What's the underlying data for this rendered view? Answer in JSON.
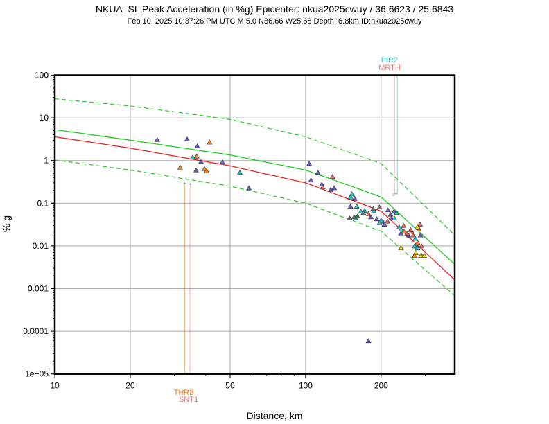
{
  "title": "NKUA–SL Peak Acceleration (in %g) Epicenter: nkua2025cwuy / 36.6623 / 25.6843",
  "subtitle": "Feb 10, 2025 10:37:26 PM UTC   M 5.0   N36.66 W25.68   Depth: 6.8km   ID:nkua2025cwuy",
  "chart_data": {
    "type": "scatter",
    "title": "NKUA–SL Peak Acceleration (in %g) Epicenter: nkua2025cwuy / 36.6623 / 25.6843",
    "xlabel": "Distance, km",
    "ylabel": "% g",
    "xscale": "log",
    "yscale": "log",
    "xlim": [
      10,
      393
    ],
    "ylim": [
      1e-05,
      100
    ],
    "grid": true,
    "x_ticks": [
      {
        "value": 10,
        "label": "10"
      },
      {
        "value": 20,
        "label": "20"
      },
      {
        "value": 50,
        "label": "50"
      },
      {
        "value": 100,
        "label": "100"
      },
      {
        "value": 200,
        "label": "200"
      }
    ],
    "y_ticks": [
      {
        "value": 100,
        "label": "100"
      },
      {
        "value": 10,
        "label": "10"
      },
      {
        "value": 1,
        "label": "1"
      },
      {
        "value": 0.1,
        "label": "0.1"
      },
      {
        "value": 0.01,
        "label": "0.01"
      },
      {
        "value": 0.001,
        "label": "0.001"
      },
      {
        "value": 0.0001,
        "label": "0.0001"
      },
      {
        "value": 1e-05,
        "label": "1e−05"
      }
    ],
    "curves": [
      {
        "name": "gmpe-upper",
        "color": "#33cc33",
        "style": "dashed",
        "x": [
          10,
          20,
          50,
          100,
          200,
          393
        ],
        "y": [
          28,
          19,
          9.2,
          3.6,
          0.85,
          0.018
        ]
      },
      {
        "name": "gmpe-median-green",
        "color": "#22cc22",
        "style": "solid",
        "x": [
          10,
          20,
          50,
          100,
          200,
          393
        ],
        "y": [
          5.3,
          3.0,
          1.35,
          0.6,
          0.14,
          0.0037
        ]
      },
      {
        "name": "gmpe-median-red",
        "color": "#ee2222",
        "style": "solid",
        "x": [
          10,
          20,
          50,
          100,
          200,
          393
        ],
        "y": [
          3.6,
          1.95,
          0.75,
          0.3,
          0.065,
          0.0016
        ]
      },
      {
        "name": "gmpe-lower",
        "color": "#33cc33",
        "style": "dashed",
        "x": [
          10,
          20,
          50,
          100,
          200,
          393
        ],
        "y": [
          1.03,
          0.6,
          0.25,
          0.1,
          0.022,
          0.00068
        ]
      }
    ],
    "series": [
      {
        "name": "blue",
        "color": "#6a5acd",
        "points": [
          [
            25.6,
            3.1
          ],
          [
            33.7,
            3.2
          ],
          [
            37.0,
            2.2
          ],
          [
            38.3,
            0.95
          ],
          [
            36.6,
            0.6
          ],
          [
            46.6,
            0.93
          ],
          [
            59.4,
            0.23
          ],
          [
            103.4,
            0.85
          ],
          [
            112,
            0.53
          ],
          [
            105,
            0.35
          ],
          [
            116,
            0.28
          ],
          [
            126,
            0.21
          ],
          [
            130,
            0.23
          ],
          [
            157,
            0.13
          ],
          [
            151,
            0.085
          ],
          [
            178,
            6e-05
          ],
          [
            192,
            0.043
          ],
          [
            182,
            0.048
          ],
          [
            213,
            0.07
          ],
          [
            218,
            0.055
          ],
          [
            225,
            0.065
          ],
          [
            220,
            0.045
          ],
          [
            206,
            0.032
          ],
          [
            203,
            0.038
          ],
          [
            240,
            0.02
          ],
          [
            256,
            0.018
          ],
          [
            287,
            0.018
          ],
          [
            278,
            0.01
          ]
        ]
      },
      {
        "name": "orange",
        "color": "#ff8c1a",
        "points": [
          [
            41.4,
            2.7
          ],
          [
            36.8,
            1.27
          ],
          [
            31.6,
            0.7
          ],
          [
            39.5,
            0.65
          ],
          [
            40.3,
            0.58
          ],
          [
            247,
            0.022
          ],
          [
            265,
            0.022
          ],
          [
            280,
            0.012
          ],
          [
            283,
            0.025
          ],
          [
            290,
            0.006
          ],
          [
            272,
            0.006
          ]
        ]
      },
      {
        "name": "cyan",
        "color": "#1fc9c9",
        "points": [
          [
            35.5,
            1.2
          ],
          [
            54.7,
            0.53
          ],
          [
            153,
            0.165
          ],
          [
            151,
            0.14
          ],
          [
            160,
            0.085
          ],
          [
            172,
            0.068
          ],
          [
            166,
            0.065
          ],
          [
            158,
            0.045
          ],
          [
            187,
            0.067
          ],
          [
            197,
            0.035
          ],
          [
            200,
            0.04
          ],
          [
            226,
            0.045
          ],
          [
            230,
            0.06
          ],
          [
            240,
            0.025
          ],
          [
            236,
            0.028
          ],
          [
            274,
            0.015
          ],
          [
            272,
            0.01
          ],
          [
            279,
            0.009
          ]
        ]
      },
      {
        "name": "red",
        "color": "#e8686a",
        "points": [
          [
            128,
            0.42
          ],
          [
            117,
            0.24
          ],
          [
            178,
            0.057
          ],
          [
            212,
            0.038
          ],
          [
            246,
            0.03
          ],
          [
            254,
            0.02
          ],
          [
            262,
            0.024
          ],
          [
            268,
            0.018
          ],
          [
            281,
            0.027
          ],
          [
            286,
            0.032
          ],
          [
            290,
            0.01
          ]
        ]
      },
      {
        "name": "gray",
        "color": "#777777",
        "points": [
          [
            186,
            0.075
          ],
          [
            156,
            0.048
          ],
          [
            170,
            0.06
          ],
          [
            150,
            0.045
          ],
          [
            197,
            0.082
          ]
        ]
      },
      {
        "name": "yellow",
        "color": "#f2e000",
        "points": [
          [
            240,
            0.009
          ],
          [
            279,
            0.028
          ],
          [
            288,
            0.006
          ],
          [
            297,
            0.006
          ],
          [
            275,
            0.007
          ]
        ]
      },
      {
        "name": "green",
        "color": "#1a8a1a",
        "points": [
          [
            161,
            0.05
          ]
        ]
      }
    ],
    "station_markers": [
      {
        "label": "PIR2",
        "color": "#22d3e0",
        "distance": 232,
        "value": 0.16,
        "position": "top"
      },
      {
        "label": "MRTH",
        "color": "#f07a7a",
        "distance": 226,
        "value": 0.15,
        "position": "top"
      },
      {
        "label": "THR8",
        "color": "#f0801a",
        "distance": 33.0,
        "value": 0.3,
        "position": "bottom"
      },
      {
        "label": "SNT1",
        "color": "#f07a7a",
        "distance": 34.6,
        "value": 0.29,
        "position": "bottom"
      }
    ]
  }
}
